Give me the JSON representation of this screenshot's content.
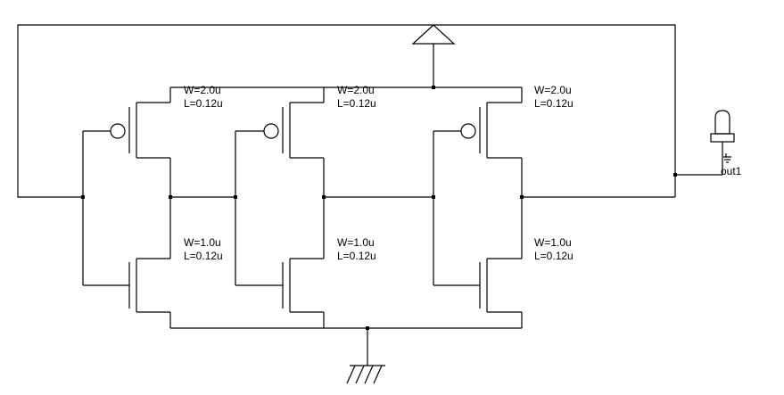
{
  "schematic": {
    "stages": [
      {
        "pmos": {
          "w": "W=2.0u",
          "l": "L=0.12u"
        },
        "nmos": {
          "w": "W=1.0u",
          "l": "L=0.12u"
        }
      },
      {
        "pmos": {
          "w": "W=2.0u",
          "l": "L=0.12u"
        },
        "nmos": {
          "w": "W=1.0u",
          "l": "L=0.12u"
        }
      },
      {
        "pmos": {
          "w": "W=2.0u",
          "l": "L=0.12u"
        },
        "nmos": {
          "w": "W=1.0u",
          "l": "L=0.12u"
        }
      }
    ],
    "output_probe": {
      "label": "out1"
    }
  }
}
